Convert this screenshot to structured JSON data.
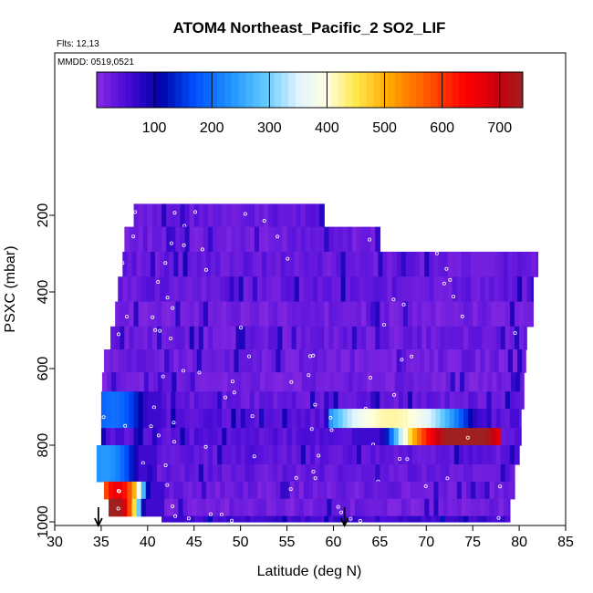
{
  "chart_data": {
    "type": "heatmap",
    "title": "ATOM4 Northeast_Pacific_2 SO2_LIF",
    "flights_text": "Flts: 12,13",
    "mmdd_text": "MMDD: 0519,0521",
    "xlabel": "Latitude (deg N)",
    "ylabel": "PSXC (mbar)",
    "xlim": [
      30,
      85
    ],
    "ylim": [
      1000,
      0
    ],
    "x_ticks": [
      30,
      35,
      40,
      45,
      50,
      55,
      60,
      65,
      70,
      75,
      80,
      85
    ],
    "y_ticks": [
      200,
      400,
      600,
      800,
      1000
    ],
    "colorbar": {
      "range": [
        0,
        740
      ],
      "ticks": [
        100,
        200,
        300,
        400,
        500,
        600,
        700
      ],
      "stops": [
        {
          "v": 0,
          "c": "#8a2be2"
        },
        {
          "v": 50,
          "c": "#4b0cd8"
        },
        {
          "v": 110,
          "c": "#0000a8"
        },
        {
          "v": 170,
          "c": "#0050ff"
        },
        {
          "v": 230,
          "c": "#1e90ff"
        },
        {
          "v": 290,
          "c": "#5ec8ff"
        },
        {
          "v": 350,
          "c": "#e0f4ff"
        },
        {
          "v": 400,
          "c": "#ffffe0"
        },
        {
          "v": 450,
          "c": "#ffe84a"
        },
        {
          "v": 510,
          "c": "#ffa500"
        },
        {
          "v": 580,
          "c": "#ff5000"
        },
        {
          "v": 640,
          "c": "#ff0000"
        },
        {
          "v": 700,
          "c": "#c80010"
        },
        {
          "v": 740,
          "c": "#a02020"
        }
      ]
    },
    "arrows_latitude": [
      34.7,
      61.2
    ],
    "data_extent": {
      "rows": [
        {
          "p_top": 170,
          "p_bot": 230,
          "lat_start": 38.5,
          "lat_end": 59,
          "base": 30
        },
        {
          "p_top": 230,
          "p_bot": 295,
          "lat_start": 37.5,
          "lat_end": 65,
          "base": 25
        },
        {
          "p_top": 295,
          "p_bot": 360,
          "lat_start": 37.3,
          "lat_end": 82,
          "base": 30
        },
        {
          "p_top": 360,
          "p_bot": 425,
          "lat_start": 36.8,
          "lat_end": 81.5,
          "base": 30
        },
        {
          "p_top": 425,
          "p_bot": 490,
          "lat_start": 36.5,
          "lat_end": 81.5,
          "base": 20
        },
        {
          "p_top": 490,
          "p_bot": 550,
          "lat_start": 36.0,
          "lat_end": 80.8,
          "base": 25
        },
        {
          "p_top": 550,
          "p_bot": 610,
          "lat_start": 35.3,
          "lat_end": 80.7,
          "base": 22
        },
        {
          "p_top": 610,
          "p_bot": 660,
          "lat_start": 35.1,
          "lat_end": 80.5,
          "base": 20
        },
        {
          "p_top": 660,
          "p_bot": 705,
          "lat_start": 35.0,
          "lat_end": 80.5,
          "base": 30
        },
        {
          "p_top": 705,
          "p_bot": 755,
          "lat_start": 35.0,
          "lat_end": 80.2,
          "base": 40
        },
        {
          "p_top": 755,
          "p_bot": 800,
          "lat_start": 35.0,
          "lat_end": 80.2,
          "base": 40
        },
        {
          "p_top": 800,
          "p_bot": 850,
          "lat_start": 34.5,
          "lat_end": 80.0,
          "base": 35
        },
        {
          "p_top": 850,
          "p_bot": 895,
          "lat_start": 34.5,
          "lat_end": 79.5,
          "base": 30
        },
        {
          "p_top": 895,
          "p_bot": 940,
          "lat_start": 35.3,
          "lat_end": 79.5,
          "base": 25
        },
        {
          "p_top": 940,
          "p_bot": 985,
          "lat_start": 35.8,
          "lat_end": 79.0,
          "base": 20
        },
        {
          "p_top": 985,
          "p_bot": 1000,
          "lat_start": 41.5,
          "lat_end": 79.0,
          "base": 60
        }
      ],
      "features": [
        {
          "p_top": 705,
          "p_bot": 755,
          "lat_start": 59.5,
          "lat_end": 76.0,
          "peak": 360,
          "peak_lat": 66
        },
        {
          "p_top": 755,
          "p_bot": 800,
          "lat_start": 62.0,
          "lat_end": 78.0,
          "peak": 720,
          "peak_lat": 74
        },
        {
          "p_top": 660,
          "p_bot": 755,
          "lat_start": 35.0,
          "lat_end": 41.5,
          "peak": 140,
          "peak_lat": 36
        },
        {
          "p_top": 800,
          "p_bot": 895,
          "lat_start": 34.5,
          "lat_end": 41.0,
          "peak": 180,
          "peak_lat": 35.2
        },
        {
          "p_top": 895,
          "p_bot": 940,
          "lat_start": 35.3,
          "lat_end": 41.5,
          "peak": 600,
          "peak_lat": 36.5
        },
        {
          "p_top": 940,
          "p_bot": 985,
          "lat_start": 35.8,
          "lat_end": 41.5,
          "peak": 700,
          "peak_lat": 36.2
        }
      ]
    }
  }
}
